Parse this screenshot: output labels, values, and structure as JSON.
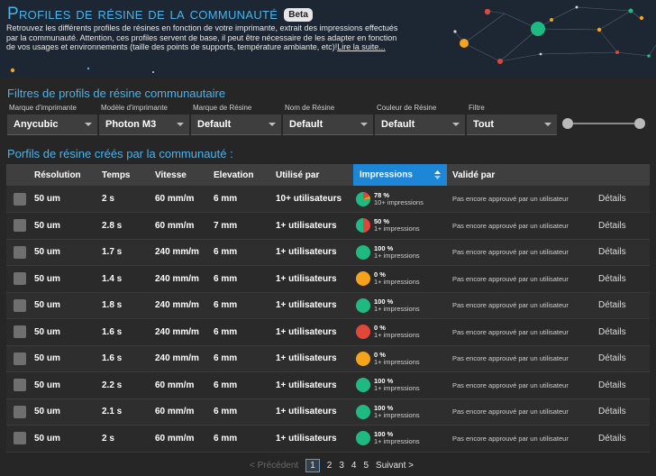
{
  "header": {
    "title": "Profiles de résine de la communauté",
    "badge": "Beta",
    "intro": "Retrouvez les différents profiles de résines en fonction de votre imprimante, extrait des impressions effectués par la communauté. Attention, ces profiles servent de base, il peut être nécessaire de les adapter en fonction de vos usages et environnements (taille des points de supports, température ambiante, etc)!",
    "read_more": "Lire la suite..."
  },
  "filters": {
    "title": "Filtres de profils de résine communautaire",
    "items": [
      {
        "label": "Marque d'imprimante",
        "value": "Anycubic"
      },
      {
        "label": "Modèle d'imprimante",
        "value": "Photon M3"
      },
      {
        "label": "Marque de Résine",
        "value": "Default"
      },
      {
        "label": "Nom de Résine",
        "value": "Default"
      },
      {
        "label": "Couleur de Résine",
        "value": "Default"
      },
      {
        "label": "Filtre",
        "value": "Tout"
      }
    ]
  },
  "profiles": {
    "title": "Porfils de résine créés par la communauté :",
    "columns": [
      "Résolution",
      "Temps",
      "Vitesse",
      "Elevation",
      "Utilisé par",
      "Impressions",
      "Validé par"
    ],
    "sorted_column": "Impressions",
    "rows": [
      {
        "resolution": "50 um",
        "temps": "2 s",
        "vitesse": "60 mm/m",
        "elevation": "6 mm",
        "users": "10+ utilisateurs",
        "pct": "78 %",
        "impressions": "10+ impressions",
        "validated": "Pas encore approuvé par un utilisateur",
        "details": "Détails",
        "pie": "multi"
      },
      {
        "resolution": "50 um",
        "temps": "2.8 s",
        "vitesse": "60 mm/m",
        "elevation": "7 mm",
        "users": "1+ utilisateurs",
        "pct": "50 %",
        "impressions": "1+ impressions",
        "validated": "Pas encore approuvé par un utilisateur",
        "details": "Détails",
        "pie": "half"
      },
      {
        "resolution": "50 um",
        "temps": "1.7 s",
        "vitesse": "240 mm/m",
        "elevation": "6 mm",
        "users": "1+ utilisateurs",
        "pct": "100 %",
        "impressions": "1+ impressions",
        "validated": "Pas encore approuvé par un utilisateur",
        "details": "Détails",
        "pie": "green"
      },
      {
        "resolution": "50 um",
        "temps": "1.4 s",
        "vitesse": "240 mm/m",
        "elevation": "6 mm",
        "users": "1+ utilisateurs",
        "pct": "0 %",
        "impressions": "1+ impressions",
        "validated": "Pas encore approuvé par un utilisateur",
        "details": "Détails",
        "pie": "orange"
      },
      {
        "resolution": "50 um",
        "temps": "1.8 s",
        "vitesse": "240 mm/m",
        "elevation": "6 mm",
        "users": "1+ utilisateurs",
        "pct": "100 %",
        "impressions": "1+ impressions",
        "validated": "Pas encore approuvé par un utilisateur",
        "details": "Détails",
        "pie": "green"
      },
      {
        "resolution": "50 um",
        "temps": "1.6 s",
        "vitesse": "240 mm/m",
        "elevation": "6 mm",
        "users": "1+ utilisateurs",
        "pct": "0 %",
        "impressions": "1+ impressions",
        "validated": "Pas encore approuvé par un utilisateur",
        "details": "Détails",
        "pie": "red"
      },
      {
        "resolution": "50 um",
        "temps": "1.6 s",
        "vitesse": "240 mm/m",
        "elevation": "6 mm",
        "users": "1+ utilisateurs",
        "pct": "0 %",
        "impressions": "1+ impressions",
        "validated": "Pas encore approuvé par un utilisateur",
        "details": "Détails",
        "pie": "orange"
      },
      {
        "resolution": "50 um",
        "temps": "2.2 s",
        "vitesse": "60 mm/m",
        "elevation": "6 mm",
        "users": "1+ utilisateurs",
        "pct": "100 %",
        "impressions": "1+ impressions",
        "validated": "Pas encore approuvé par un utilisateur",
        "details": "Détails",
        "pie": "green"
      },
      {
        "resolution": "50 um",
        "temps": "2.1 s",
        "vitesse": "60 mm/m",
        "elevation": "6 mm",
        "users": "1+ utilisateurs",
        "pct": "100 %",
        "impressions": "1+ impressions",
        "validated": "Pas encore approuvé par un utilisateur",
        "details": "Détails",
        "pie": "green"
      },
      {
        "resolution": "50 um",
        "temps": "2 s",
        "vitesse": "60 mm/m",
        "elevation": "6 mm",
        "users": "1+ utilisateurs",
        "pct": "100 %",
        "impressions": "1+ impressions",
        "validated": "Pas encore approuvé par un utilisateur",
        "details": "Détails",
        "pie": "green"
      }
    ]
  },
  "pagination": {
    "prev": "< Précédent",
    "pages": [
      "1",
      "2",
      "3",
      "4",
      "5"
    ],
    "current": "1",
    "next": "Suivant >"
  },
  "colors": {
    "accent": "#48b3ec",
    "sort_header": "#1e86d6",
    "success": "#1fb982",
    "warning": "#f5a31a",
    "danger": "#e0473a"
  }
}
